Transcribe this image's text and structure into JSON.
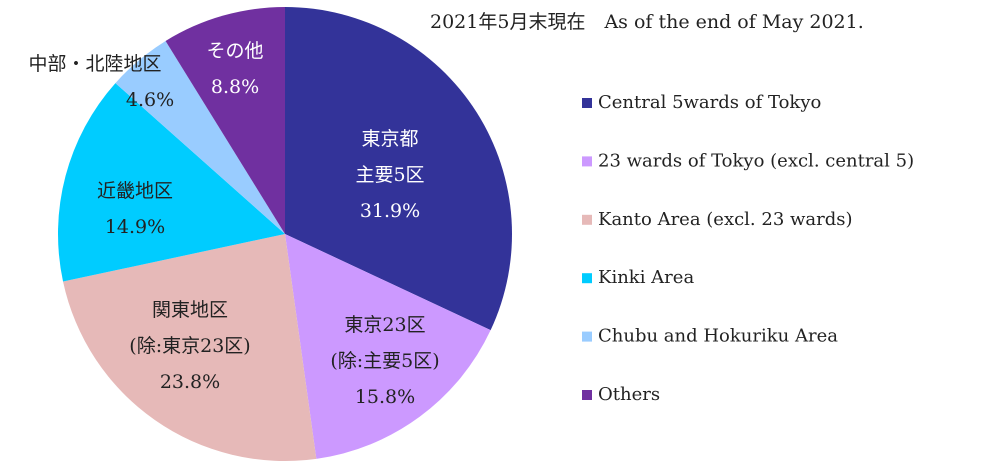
{
  "chart_data": {
    "type": "pie",
    "title": "2021年5月末現在　As of the end of May 2021.",
    "categories": [
      "Central 5wards of Tokyo",
      "23 wards of Tokyo (excl. central 5)",
      "Kanto Area (excl. 23 wards)",
      "Kinki Area",
      "Chubu and Hokuriku Area",
      "Others"
    ],
    "slice_labels": [
      [
        "東京都",
        "主要5区"
      ],
      [
        "東京23区",
        "(除:主要5区)"
      ],
      [
        "関東地区",
        "(除:東京23区)"
      ],
      [
        "近畿地区"
      ],
      [
        "中部・北陸地区"
      ],
      [
        "その他"
      ]
    ],
    "values": [
      31.9,
      15.8,
      23.8,
      14.9,
      4.6,
      8.8
    ],
    "value_labels": [
      "31.9%",
      "15.8%",
      "23.8%",
      "14.9%",
      "4.6%",
      "8.8%"
    ],
    "colors": [
      "#333399",
      "#cc99ff",
      "#e6b9b8",
      "#00ccff",
      "#99ccff",
      "#7030a0"
    ],
    "legend": "right"
  }
}
